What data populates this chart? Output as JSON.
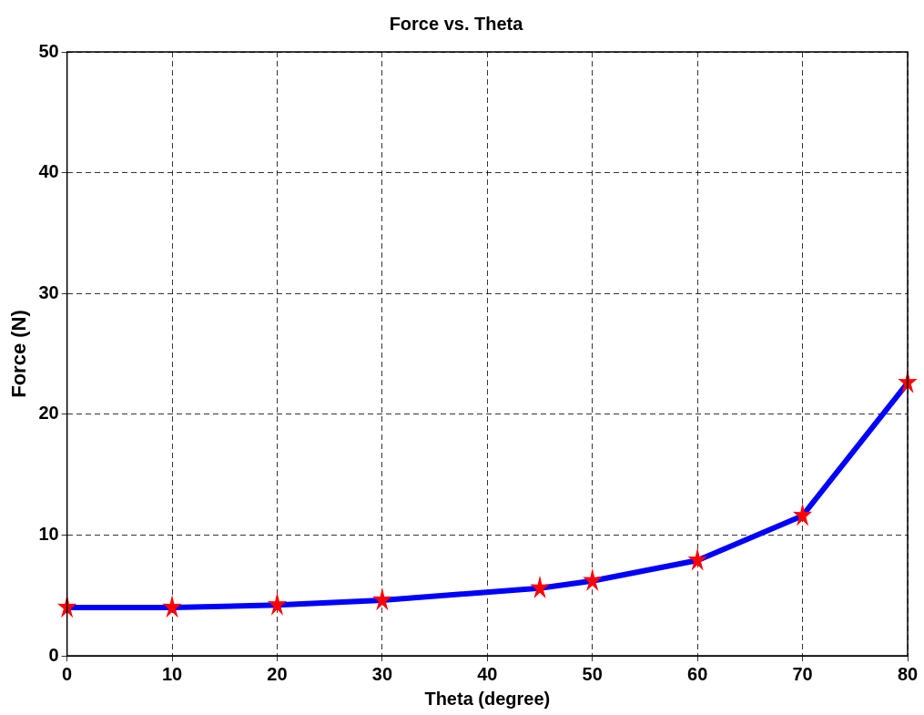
{
  "chart_data": {
    "type": "line",
    "title": "Force vs. Theta",
    "xlabel": "Theta (degree)",
    "ylabel": "Force (N)",
    "x": [
      0,
      10,
      20,
      30,
      45,
      50,
      60,
      70,
      80
    ],
    "series": [
      {
        "color": "#0000ff",
        "values": [
          4.0,
          4.0,
          4.2,
          4.6,
          5.6,
          6.2,
          7.9,
          11.6,
          22.6
        ]
      }
    ],
    "xlim": [
      0,
      80
    ],
    "xticks": [
      0,
      10,
      20,
      30,
      40,
      50,
      60,
      70,
      80
    ],
    "ylim": [
      0,
      50
    ],
    "yticks": [
      0,
      10,
      20,
      30,
      40,
      50
    ],
    "grid": true,
    "legend": false,
    "marker": "star",
    "line_style": "solid"
  }
}
